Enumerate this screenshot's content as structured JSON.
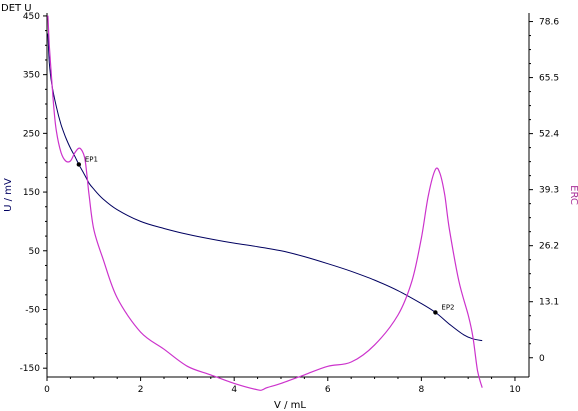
{
  "chart_data": {
    "type": "line",
    "title": "DET U",
    "xlabel": "V / mL",
    "ylabel": "U / mV",
    "y2label": "ERC",
    "xlim": [
      0,
      10.3
    ],
    "ylim": [
      -165,
      455
    ],
    "y2lim": [
      -4.5,
      80.6
    ],
    "x_ticks": [
      "0",
      "2",
      "4",
      "6",
      "8",
      "10"
    ],
    "y_ticks": [
      "450",
      "350",
      "250",
      "150",
      "50",
      "-50",
      "-150"
    ],
    "y2_ticks": [
      "78.6",
      "65.5",
      "52.4",
      "39.3",
      "26.2",
      "13.1",
      "0"
    ],
    "grid": false,
    "colors": {
      "potential": "#000060",
      "erc": "#cc33cc",
      "axis_right_label": "#aa3399"
    },
    "series": [
      {
        "axis": "left",
        "x": [
          0.02,
          0.05,
          0.1,
          0.2,
          0.3,
          0.4,
          0.5,
          0.6,
          0.68,
          0.8,
          0.9,
          1.0,
          1.2,
          1.5,
          2,
          2.5,
          3,
          3.5,
          4,
          4.5,
          5,
          5.5,
          6,
          6.5,
          7,
          7.5,
          8,
          8.3,
          8.6,
          8.9,
          9.1,
          9.3
        ],
        "y": [
          420,
          370,
          335,
          295,
          265,
          243,
          225,
          210,
          197,
          180,
          165,
          155,
          138,
          120,
          100,
          88,
          78,
          70,
          63,
          57,
          50,
          40,
          28,
          15,
          0,
          -18,
          -40,
          -55,
          -75,
          -93,
          -100,
          -103
        ]
      },
      {
        "axis": "right",
        "x": [
          0.02,
          0.05,
          0.1,
          0.15,
          0.2,
          0.3,
          0.4,
          0.5,
          0.6,
          0.7,
          0.8,
          0.85,
          0.9,
          1.0,
          1.2,
          1.5,
          2,
          2.5,
          3,
          3.5,
          4,
          4.5,
          4.6,
          4.7,
          5,
          5.5,
          6,
          6.5,
          7,
          7.5,
          7.8,
          8.0,
          8.15,
          8.3,
          8.4,
          8.5,
          8.6,
          8.8,
          9.0,
          9.1,
          9.2,
          9.3
        ],
        "y": [
          80,
          73,
          65,
          58,
          53,
          48,
          46,
          46,
          48,
          49,
          47,
          43,
          38,
          30,
          23,
          14,
          6,
          2,
          -2,
          -4,
          -6,
          -7.5,
          -7.5,
          -7,
          -6,
          -4,
          -2,
          -1,
          3,
          10,
          18,
          28,
          38,
          44,
          43,
          38,
          30,
          18,
          10,
          5,
          -3,
          -7
        ]
      }
    ],
    "annotations": [
      {
        "label": "EP1",
        "x": 0.68,
        "y": 197
      },
      {
        "label": "EP2",
        "x": 8.3,
        "y": -55
      }
    ]
  }
}
